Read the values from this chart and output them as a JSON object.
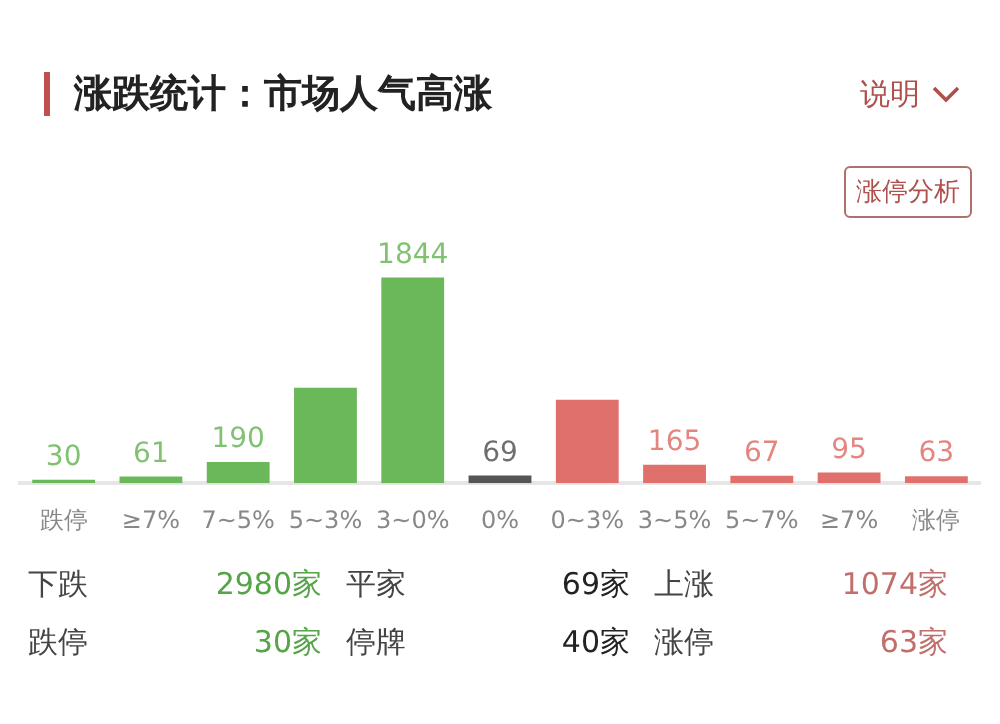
{
  "chart_data": {
    "type": "bar",
    "title": "涨跌统计：市场人气高涨",
    "categories": [
      "跌停",
      "≥7%",
      "7~5%",
      "5~3%",
      "3~0%",
      "0%",
      "0~3%",
      "3~5%",
      "5~7%",
      "≥7%",
      "涨停"
    ],
    "values": [
      30,
      61,
      190,
      855,
      1844,
      69,
      747,
      165,
      67,
      95,
      63
    ],
    "colors": [
      "#6ab85a",
      "#6ab85a",
      "#6ab85a",
      "#6ab85a",
      "#6ab85a",
      "#555555",
      "#e0706b",
      "#e0706b",
      "#e0706b",
      "#e0706b",
      "#e0706b"
    ],
    "value_labels": [
      "30",
      "61",
      "190",
      null,
      "1844",
      "69",
      null,
      "165",
      "67",
      "95",
      "63"
    ],
    "grid": false,
    "legend": false,
    "annotations": [
      "说明",
      "涨停分析",
      "下跌",
      "2980家",
      "平家",
      "69家",
      "上涨",
      "1074家",
      "跌停",
      "30家",
      "停牌",
      "40家",
      "涨停",
      "63家"
    ]
  }
}
